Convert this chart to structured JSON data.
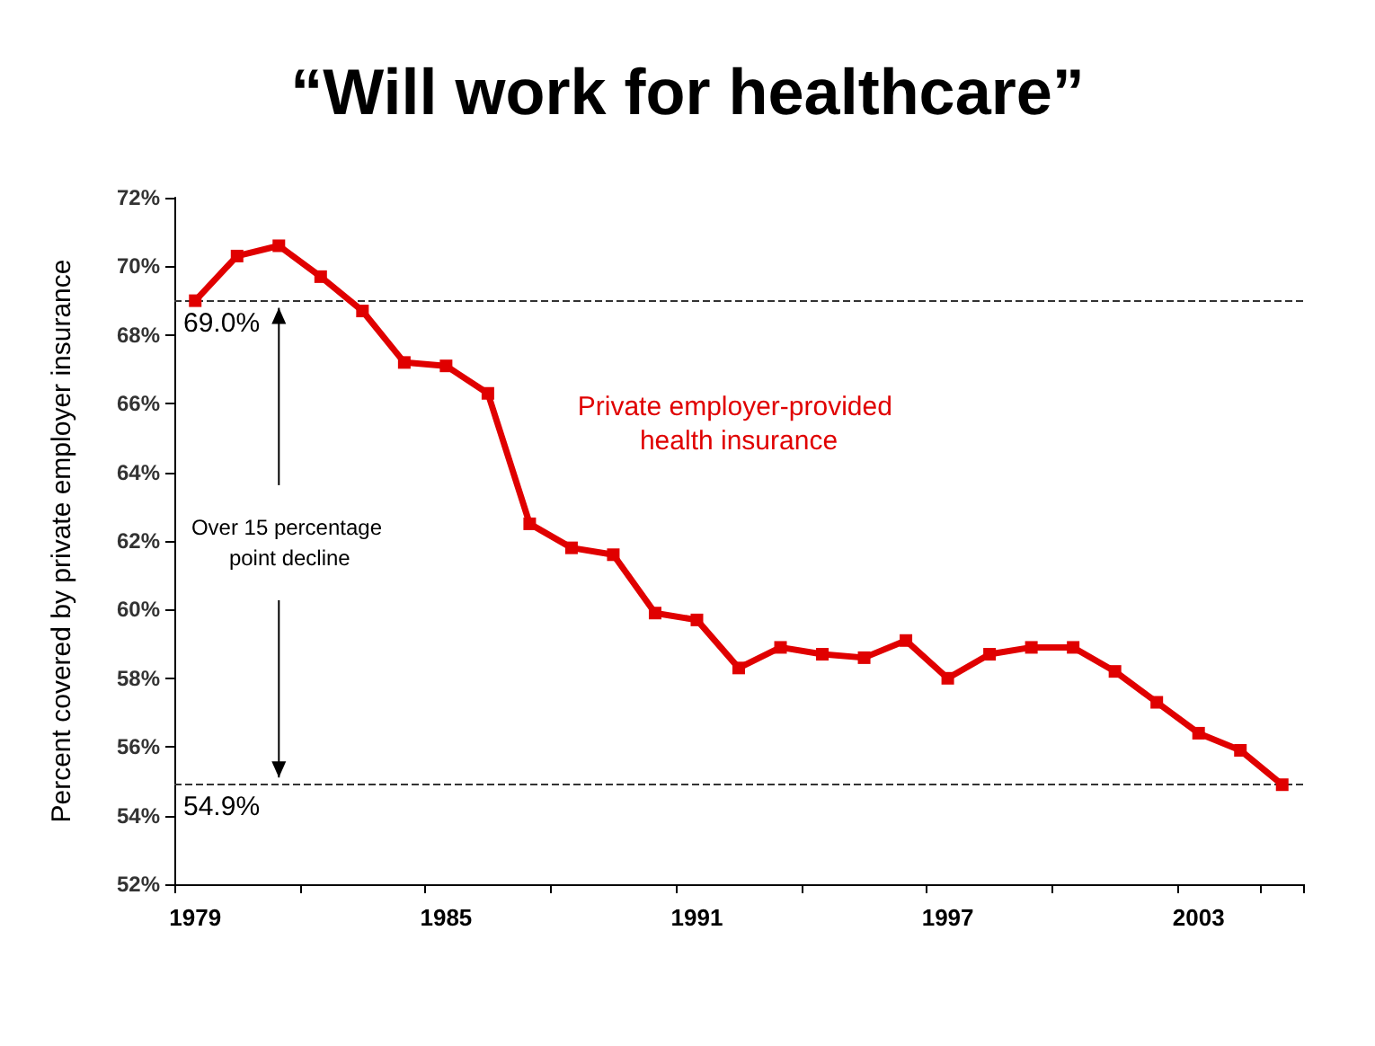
{
  "chart_data": {
    "type": "line",
    "title": "“Will work for healthcare”",
    "ylabel": "Percent covered by private employer insurance",
    "categories": [
      "1979",
      null,
      null,
      null,
      null,
      null,
      "1985",
      null,
      null,
      null,
      null,
      null,
      "1991",
      null,
      null,
      null,
      null,
      null,
      "1997",
      null,
      null,
      null,
      null,
      null,
      "2003",
      null,
      null
    ],
    "series": [
      {
        "name": "Private employer-provided health insurance",
        "color": "#e00000",
        "values": [
          69.0,
          70.3,
          70.6,
          69.7,
          68.7,
          67.2,
          67.1,
          66.3,
          62.5,
          61.8,
          61.6,
          59.9,
          59.7,
          58.3,
          58.9,
          58.7,
          58.6,
          59.1,
          58.0,
          58.7,
          58.9,
          58.9,
          58.2,
          57.3,
          56.4,
          55.9,
          54.9
        ]
      }
    ],
    "ylim": [
      52,
      72
    ],
    "yticks": [
      {
        "value": 52,
        "label": "52%"
      },
      {
        "value": 54,
        "label": "54%"
      },
      {
        "value": 56,
        "label": "56%"
      },
      {
        "value": 58,
        "label": "58%"
      },
      {
        "value": 60,
        "label": "60%"
      },
      {
        "value": 62,
        "label": "62%"
      },
      {
        "value": 64,
        "label": "64%"
      },
      {
        "value": 66,
        "label": "66%"
      },
      {
        "value": 68,
        "label": "68%"
      },
      {
        "value": 70,
        "label": "70%"
      },
      {
        "value": 72,
        "label": "72%"
      }
    ],
    "ref_lines": [
      {
        "axis": "y",
        "value": 69.0,
        "label": "69.0%",
        "color": "#333333",
        "line_style": "dashed"
      },
      {
        "axis": "y",
        "value": 54.9,
        "label": "54.9%",
        "color": "#333333",
        "line_style": "dashed"
      }
    ],
    "annotations": [
      "Over 15 percentage point decline"
    ],
    "marker": "square",
    "line_style": "solid",
    "grid": false,
    "legend": false
  }
}
